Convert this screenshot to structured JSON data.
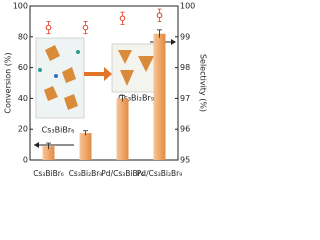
{
  "chart_data": {
    "type": "bar",
    "categories": [
      "Cs₃BiBr₆",
      "Cs₃Bi₂Br₉",
      "Pd/Cs₃BiBr₆",
      "Pd/Cs₃Bi₂Br₉"
    ],
    "series": [
      {
        "name": "Conversion",
        "color": "#f0a868",
        "values": [
          9,
          17.5,
          40,
          82
        ],
        "errors": [
          2,
          1.5,
          2,
          2.5
        ]
      },
      {
        "name": "Selectivity",
        "color": "#e0402a",
        "axis": "y2",
        "values": [
          99.3,
          99.3,
          99.6,
          99.7
        ],
        "errors": [
          0.2,
          0.2,
          0.2,
          0.2
        ]
      }
    ],
    "ylabel": "Conversion (%)",
    "y2label": "Selectivity (%)",
    "ylim": [
      0,
      100
    ],
    "yticks": [
      0,
      20,
      40,
      60,
      80,
      100
    ],
    "y2lim": [
      95,
      100
    ],
    "y2ticks": [
      95,
      96,
      97,
      98,
      99,
      100
    ],
    "annotations": [
      "Cs₃BiBr₆",
      "Cs₃Bi₂Br₉"
    ]
  }
}
